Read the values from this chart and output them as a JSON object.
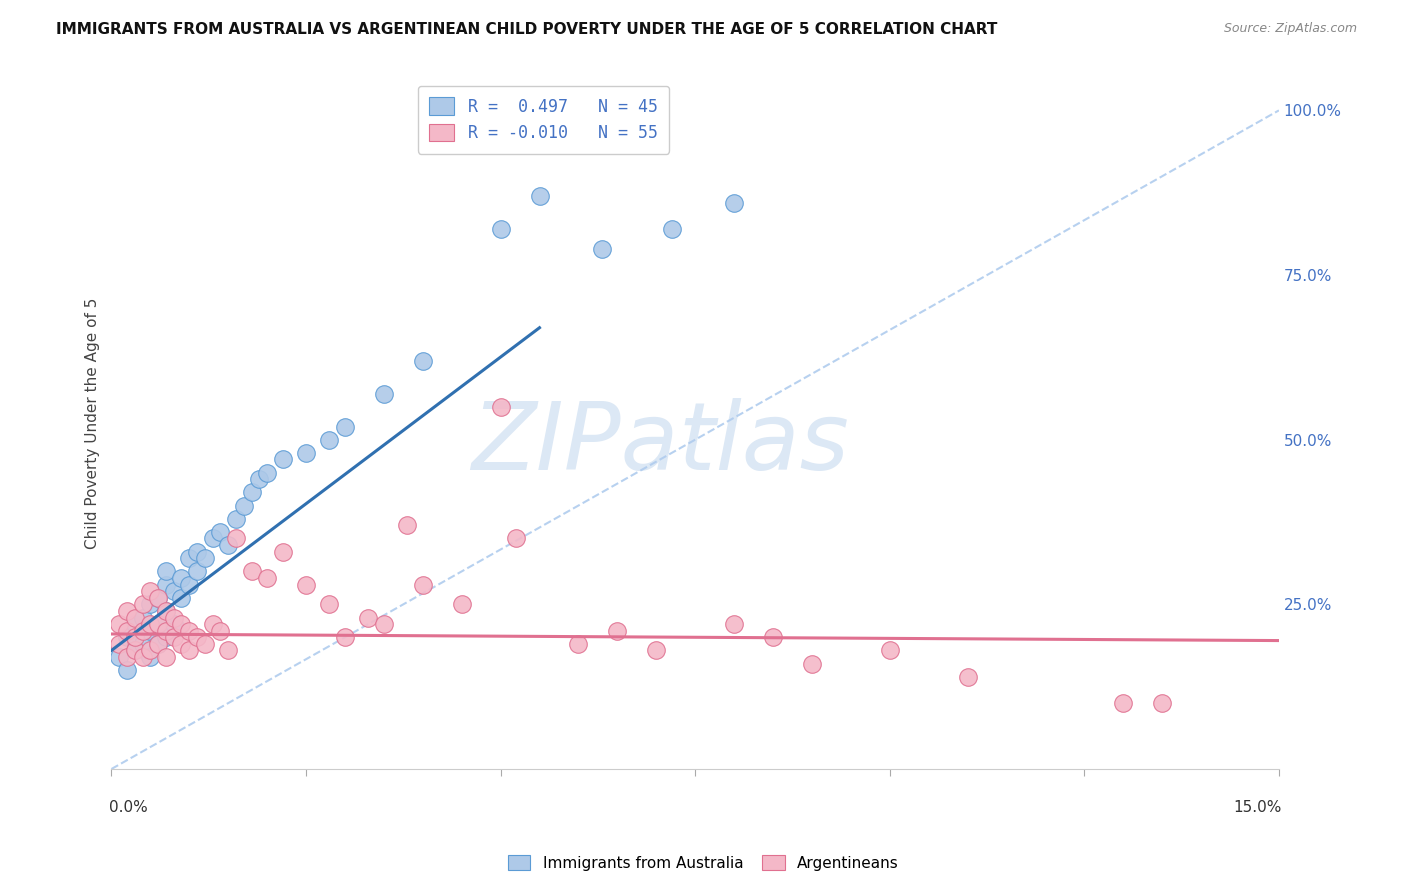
{
  "title": "IMMIGRANTS FROM AUSTRALIA VS ARGENTINEAN CHILD POVERTY UNDER THE AGE OF 5 CORRELATION CHART",
  "source": "Source: ZipAtlas.com",
  "ylabel": "Child Poverty Under the Age of 5",
  "xmin": 0.0,
  "xmax": 0.15,
  "ymin": 0.0,
  "ymax": 1.05,
  "right_ytick_vals": [
    0.25,
    0.5,
    0.75,
    1.0
  ],
  "right_yticklabels": [
    "25.0%",
    "50.0%",
    "75.0%",
    "100.0%"
  ],
  "legend_r1": "R =  0.497   N = 45",
  "legend_r2": "R = -0.010   N = 55",
  "blue_fill": "#aec9e8",
  "blue_edge": "#5b9bd5",
  "pink_fill": "#f4b8c8",
  "pink_edge": "#e07090",
  "blue_line_color": "#3070b0",
  "pink_line_color": "#e07090",
  "diag_color": "#b0ccee",
  "watermark": "ZIPatlas",
  "watermark_color": "#dce8f5",
  "grid_color": "#d0d0d0",
  "background_color": "#ffffff",
  "blue_scatter_x": [
    0.001,
    0.002,
    0.002,
    0.003,
    0.003,
    0.004,
    0.004,
    0.005,
    0.005,
    0.005,
    0.006,
    0.006,
    0.006,
    0.007,
    0.007,
    0.007,
    0.007,
    0.008,
    0.008,
    0.009,
    0.009,
    0.01,
    0.01,
    0.011,
    0.011,
    0.012,
    0.013,
    0.014,
    0.015,
    0.016,
    0.017,
    0.018,
    0.019,
    0.02,
    0.022,
    0.025,
    0.028,
    0.03,
    0.035,
    0.04,
    0.05,
    0.055,
    0.063,
    0.072,
    0.08
  ],
  "blue_scatter_y": [
    0.17,
    0.15,
    0.2,
    0.18,
    0.22,
    0.19,
    0.23,
    0.17,
    0.21,
    0.25,
    0.19,
    0.22,
    0.26,
    0.2,
    0.24,
    0.28,
    0.3,
    0.22,
    0.27,
    0.26,
    0.29,
    0.28,
    0.32,
    0.3,
    0.33,
    0.32,
    0.35,
    0.36,
    0.34,
    0.38,
    0.4,
    0.42,
    0.44,
    0.45,
    0.47,
    0.48,
    0.5,
    0.52,
    0.57,
    0.62,
    0.82,
    0.87,
    0.79,
    0.82,
    0.86
  ],
  "pink_scatter_x": [
    0.001,
    0.001,
    0.002,
    0.002,
    0.002,
    0.003,
    0.003,
    0.003,
    0.004,
    0.004,
    0.004,
    0.005,
    0.005,
    0.005,
    0.006,
    0.006,
    0.006,
    0.007,
    0.007,
    0.007,
    0.008,
    0.008,
    0.009,
    0.009,
    0.01,
    0.01,
    0.011,
    0.012,
    0.013,
    0.014,
    0.015,
    0.016,
    0.018,
    0.02,
    0.022,
    0.025,
    0.028,
    0.03,
    0.033,
    0.035,
    0.038,
    0.04,
    0.045,
    0.05,
    0.052,
    0.06,
    0.065,
    0.07,
    0.08,
    0.085,
    0.09,
    0.1,
    0.11,
    0.13,
    0.135
  ],
  "pink_scatter_y": [
    0.19,
    0.22,
    0.17,
    0.21,
    0.24,
    0.18,
    0.2,
    0.23,
    0.17,
    0.21,
    0.25,
    0.18,
    0.22,
    0.27,
    0.19,
    0.22,
    0.26,
    0.17,
    0.21,
    0.24,
    0.2,
    0.23,
    0.19,
    0.22,
    0.18,
    0.21,
    0.2,
    0.19,
    0.22,
    0.21,
    0.18,
    0.35,
    0.3,
    0.29,
    0.33,
    0.28,
    0.25,
    0.2,
    0.23,
    0.22,
    0.37,
    0.28,
    0.25,
    0.55,
    0.35,
    0.19,
    0.21,
    0.18,
    0.22,
    0.2,
    0.16,
    0.18,
    0.14,
    0.1,
    0.1
  ],
  "blue_trend_x": [
    0.0,
    0.055
  ],
  "blue_trend_y": [
    0.18,
    0.67
  ],
  "pink_trend_x": [
    0.0,
    0.15
  ],
  "pink_trend_y": [
    0.205,
    0.195
  ]
}
